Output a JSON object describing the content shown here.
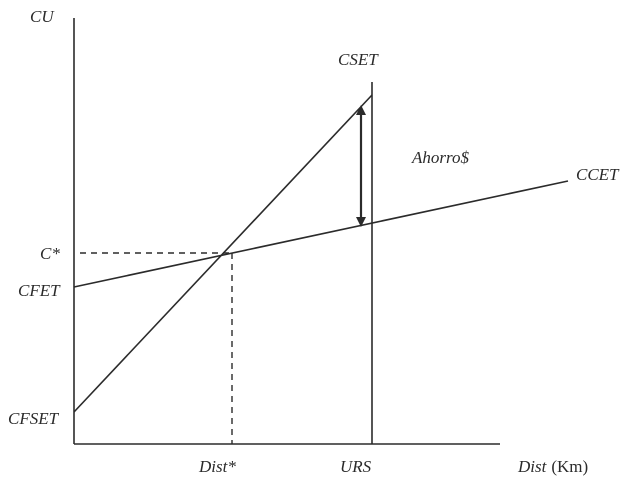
{
  "diagram": {
    "y_axis_label": "CU",
    "x_axis_label": "Dist",
    "x_axis_unit": "(Km)",
    "curve_cset_label": "CSET",
    "curve_ccet_label": "CCET",
    "savings_label": "Ahorro$",
    "y_label_cstar": "C*",
    "y_label_cfet": "CFET",
    "y_label_cfset": "CFSET",
    "x_label_diststar": "Dist*",
    "x_label_urs": "URS",
    "colors": {
      "ink": "#2b2b2b",
      "background": "#ffffff"
    }
  }
}
